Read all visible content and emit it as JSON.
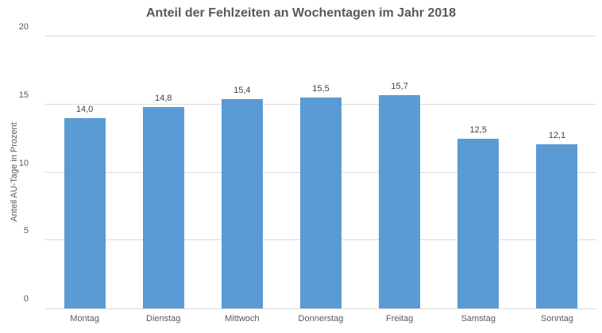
{
  "chart_data": {
    "type": "bar",
    "title": "Anteil der Fehlzeiten an Wochentagen im Jahr 2018",
    "categories": [
      "Montag",
      "Dienstag",
      "Mittwoch",
      "Donnerstag",
      "Freitag",
      "Samstag",
      "Sonntag"
    ],
    "values": [
      14.0,
      14.8,
      15.4,
      15.5,
      15.7,
      12.5,
      12.1
    ],
    "value_labels": [
      "14,0",
      "14,8",
      "15,4",
      "15,5",
      "15,7",
      "12,5",
      "12,1"
    ],
    "xlabel": "",
    "ylabel": "Anteil AU-Tage in Prozent",
    "ylim": [
      0,
      20
    ],
    "yticks": [
      0,
      5,
      10,
      15,
      20
    ],
    "grid": true,
    "legend": "none",
    "bar_color": "#5B9BD5",
    "gridline_color": "#D9D9D9",
    "title_color": "#595959",
    "axis_text_color": "#595959",
    "data_label_color": "#404040"
  }
}
